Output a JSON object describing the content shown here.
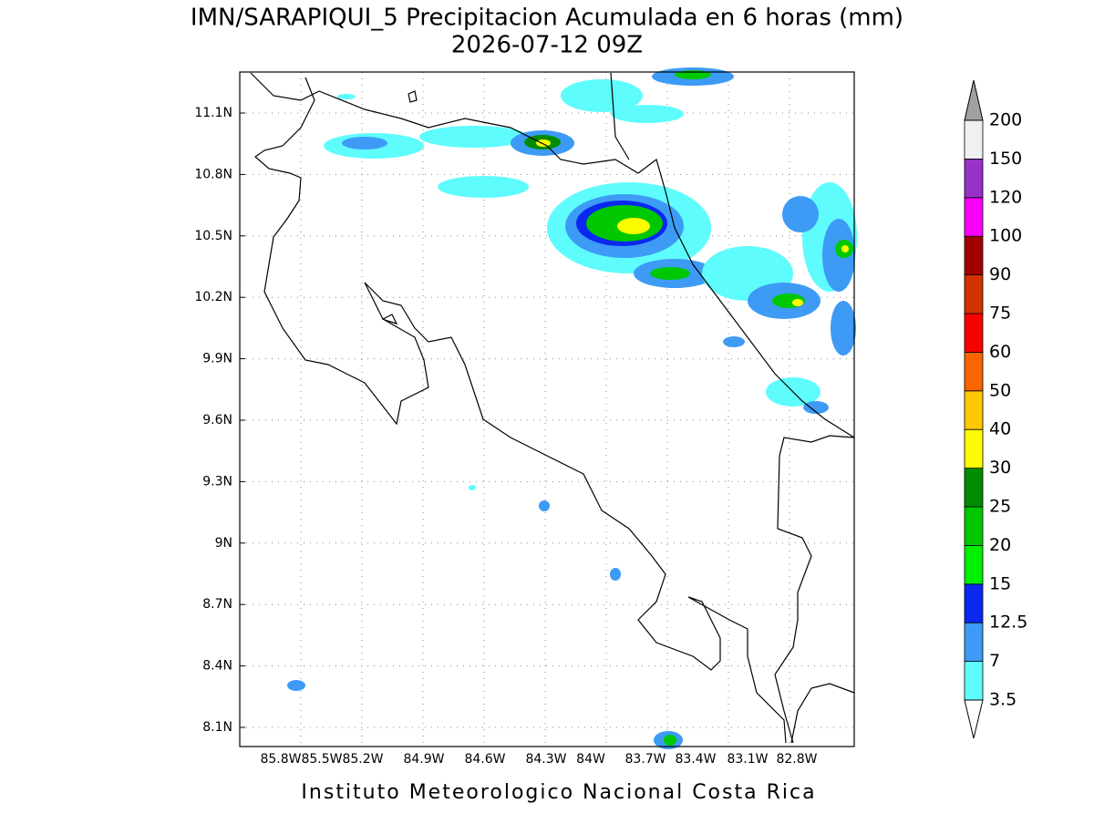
{
  "title": "IMN/SARAPIQUI_5 Precipitacion Acumulada en 6 horas (mm)",
  "subtitle": "2026-07-12 09Z",
  "map": {
    "xticks": [
      "85.8W",
      "85.5W",
      "85.2W",
      "84.9W",
      "84.6W",
      "84.3W",
      "84W",
      "83.7W",
      "83.4W",
      "83.1W",
      "82.8W"
    ],
    "yticks": [
      "11.1N",
      "10.8N",
      "10.5N",
      "10.2N",
      "9.9N",
      "9.6N",
      "9.3N",
      "9N",
      "8.7N",
      "8.4N",
      "8.1N"
    ]
  },
  "colorbar": {
    "levels": [
      3.5,
      7,
      12.5,
      15,
      20,
      25,
      30,
      40,
      50,
      60,
      75,
      90,
      100,
      120,
      150,
      200
    ],
    "colors": [
      "#5efcfc",
      "#3d9bf5",
      "#0a28f0",
      "#00f000",
      "#00c800",
      "#008c00",
      "#fcfc00",
      "#fcc800",
      "#fc6400",
      "#fc0000",
      "#d23200",
      "#a00000",
      "#fc00fc",
      "#9632c8",
      "#f0f0f0"
    ],
    "under_color": "#ffffff",
    "over_color": "#a0a0a0"
  },
  "footer": "Instituto Meteorologico Nacional Costa Rica"
}
